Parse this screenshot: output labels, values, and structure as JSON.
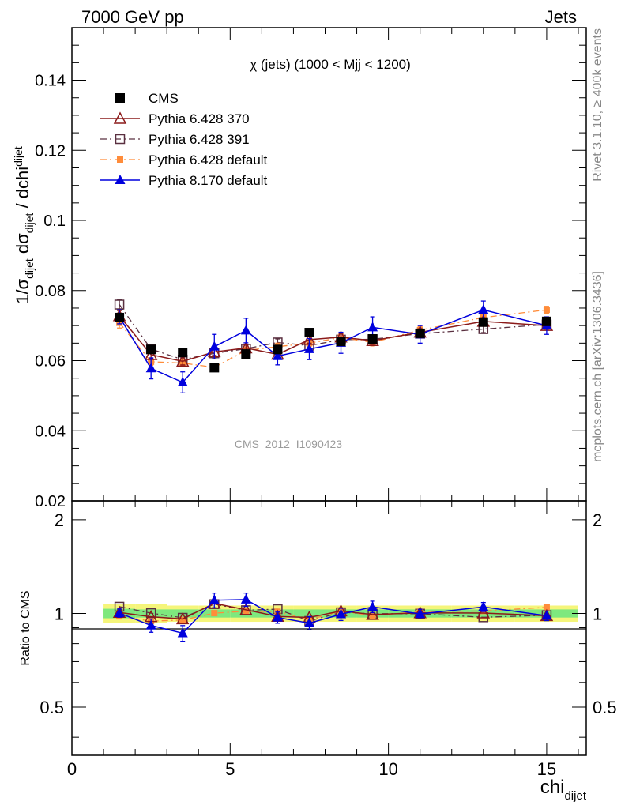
{
  "header": {
    "left": "7000 GeV pp",
    "right": "Jets"
  },
  "side_text": {
    "rivet": "Rivet 3.1.10, ≥ 400k events",
    "mcplots": "mcplots.cern.ch [arXiv:1306.3436]"
  },
  "watermark": "CMS_2012_I1090423",
  "colors": {
    "cms": "#000000",
    "py370": "#8b1a1a",
    "py391": "#5a3040",
    "py6def": "#ff8c3a",
    "py8def": "#0000dd",
    "band_yellow": "#f5f57a",
    "band_green": "#7ee87e"
  },
  "chart_data": [
    {
      "type": "scatter",
      "title": "χ (jets) (1000 < Mjj < 1200)",
      "ylabel_main": "1/σ",
      "ylabel_sub1": "dijet",
      "ylabel_mid": " dσ",
      "ylabel_sub2": "dijet",
      "ylabel_end": " / dchi",
      "ylabel_sub3": "dijet",
      "xlim": [
        0,
        16.25
      ],
      "ylim": [
        0.02,
        0.155
      ],
      "y_ticks": [
        "0.02",
        "0.04",
        "0.06",
        "0.08",
        "0.1",
        "0.12",
        "0.14"
      ],
      "legend_position": "top-left",
      "legend": [
        "CMS",
        "Pythia 6.428 370",
        "Pythia 6.428 391",
        "Pythia 6.428 default",
        "Pythia 8.170 default"
      ],
      "x": [
        1.5,
        2.5,
        3.5,
        4.5,
        5.5,
        6.5,
        7.5,
        8.5,
        9.5,
        11.0,
        13.0,
        15.0
      ],
      "series": [
        {
          "name": "CMS",
          "key": "cms",
          "values": [
            0.0723,
            0.0632,
            0.0623,
            0.058,
            0.0619,
            0.0632,
            0.068,
            0.0655,
            0.0662,
            0.0678,
            0.071,
            0.0712
          ]
        },
        {
          "name": "Pythia 6.428 370",
          "key": "py370",
          "values": [
            0.0728,
            0.0617,
            0.0598,
            0.0625,
            0.0636,
            0.0618,
            0.066,
            0.0667,
            0.0657,
            0.0681,
            0.0712,
            0.07
          ]
        },
        {
          "name": "Pythia 6.428 391",
          "key": "py391",
          "values": [
            0.076,
            0.0633,
            0.0603,
            0.0621,
            0.0634,
            0.0652,
            0.0643,
            0.066,
            0.0661,
            0.0677,
            0.069,
            0.0703
          ]
        },
        {
          "name": "Pythia 6.428 default",
          "key": "py6def",
          "values": [
            0.0708,
            0.0597,
            0.0593,
            0.0581,
            0.0629,
            0.064,
            0.065,
            0.0666,
            0.0652,
            0.0687,
            0.0723,
            0.0745
          ]
        },
        {
          "name": "Pythia 8.170 default",
          "key": "py8def",
          "values": [
            0.0725,
            0.0578,
            0.0538,
            0.064,
            0.0686,
            0.0613,
            0.0633,
            0.0651,
            0.0695,
            0.0675,
            0.0745,
            0.07
          ]
        }
      ],
      "errors": {
        "cms": [
          0.0012,
          0.0008,
          0.0008,
          0.0008,
          0.0008,
          0.0008,
          0.0008,
          0.0008,
          0.0008,
          0.0008,
          0.0008,
          0.0008
        ],
        "py370": [
          0.0015,
          0.001,
          0.001,
          0.001,
          0.001,
          0.001,
          0.001,
          0.001,
          0.001,
          0.001,
          0.001,
          0.001
        ],
        "py391": [
          0.0015,
          0.001,
          0.001,
          0.001,
          0.001,
          0.001,
          0.001,
          0.001,
          0.001,
          0.001,
          0.001,
          0.001
        ],
        "py6def": [
          0.0015,
          0.001,
          0.001,
          0.001,
          0.001,
          0.001,
          0.001,
          0.001,
          0.001,
          0.001,
          0.001,
          0.001
        ],
        "py8def": [
          0.002,
          0.003,
          0.003,
          0.0035,
          0.0035,
          0.0025,
          0.003,
          0.003,
          0.003,
          0.0025,
          0.0025,
          0.0025
        ]
      }
    },
    {
      "type": "scatter",
      "ylabel": "Ratio to CMS",
      "xlabel_main": "chi",
      "xlabel_sub": "dijet",
      "xlim": [
        0,
        16.25
      ],
      "ylim": [
        0.35,
        2.3
      ],
      "y_scale": "log",
      "y_ticks": [
        "0.5",
        "1",
        "2"
      ],
      "x_ticks": [
        "0",
        "5",
        "10",
        "15"
      ],
      "x": [
        1.5,
        2.5,
        3.5,
        4.5,
        5.5,
        6.5,
        7.5,
        8.5,
        9.5,
        11.0,
        13.0,
        15.0
      ],
      "band_edges": [
        1.0,
        2.0,
        3.0,
        4.0,
        5.0,
        6.0,
        7.0,
        8.0,
        9.0,
        10.0,
        12.0,
        14.0,
        16.0
      ],
      "band_yellow_halfwidth": [
        0.07,
        0.07,
        0.06,
        0.06,
        0.06,
        0.06,
        0.06,
        0.06,
        0.06,
        0.06,
        0.06,
        0.06
      ],
      "band_green_halfwidth": [
        0.035,
        0.03,
        0.03,
        0.03,
        0.03,
        0.03,
        0.03,
        0.03,
        0.03,
        0.03,
        0.03,
        0.03
      ],
      "series": [
        {
          "name": "Pythia 6.428 370",
          "key": "py370",
          "values": [
            1.007,
            0.976,
            0.96,
            1.078,
            1.027,
            0.978,
            0.971,
            1.018,
            0.992,
            1.004,
            1.003,
            0.983
          ]
        },
        {
          "name": "Pythia 6.428 391",
          "key": "py391",
          "values": [
            1.051,
            1.002,
            0.968,
            1.071,
            1.024,
            1.032,
            0.946,
            1.008,
            0.998,
            0.998,
            0.972,
            0.987
          ]
        },
        {
          "name": "Pythia 6.428 default",
          "key": "py6def",
          "values": [
            0.979,
            0.945,
            0.952,
            1.002,
            1.016,
            1.013,
            0.956,
            1.017,
            0.985,
            1.013,
            1.018,
            1.046
          ]
        },
        {
          "name": "Pythia 8.170 default",
          "key": "py8def",
          "values": [
            1.003,
            0.915,
            0.864,
            1.103,
            1.108,
            0.97,
            0.931,
            0.994,
            1.05,
            0.996,
            1.049,
            0.983
          ]
        }
      ],
      "errors": {
        "py8def": [
          0.03,
          0.045,
          0.05,
          0.06,
          0.055,
          0.04,
          0.045,
          0.045,
          0.045,
          0.035,
          0.035,
          0.035
        ]
      }
    }
  ]
}
